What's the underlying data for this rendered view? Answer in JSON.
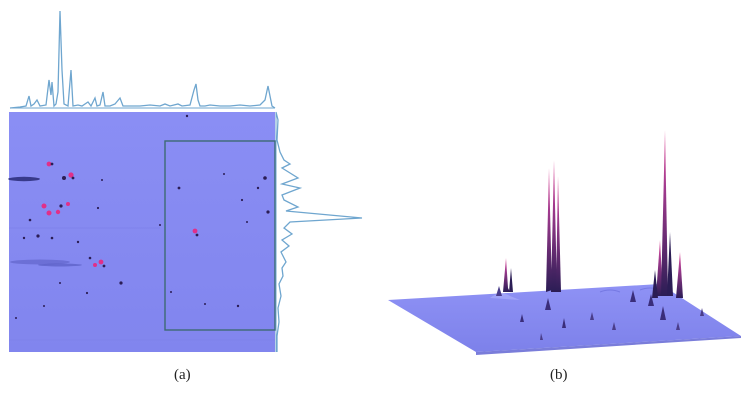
{
  "panels": [
    {
      "caption": "(a)",
      "description_type": "2D contour chromatogram with projected 1D traces"
    },
    {
      "caption": "(b)",
      "description_type": "3D surface plot of chromatogram"
    }
  ],
  "colors": {
    "plane": "#8a8ef4",
    "plane_dark": "#7b80e8",
    "trace": "#6fa6cf",
    "box": "#3d6a73",
    "peak_core": "#2b1d55",
    "peak_hot": "#e0308a"
  }
}
